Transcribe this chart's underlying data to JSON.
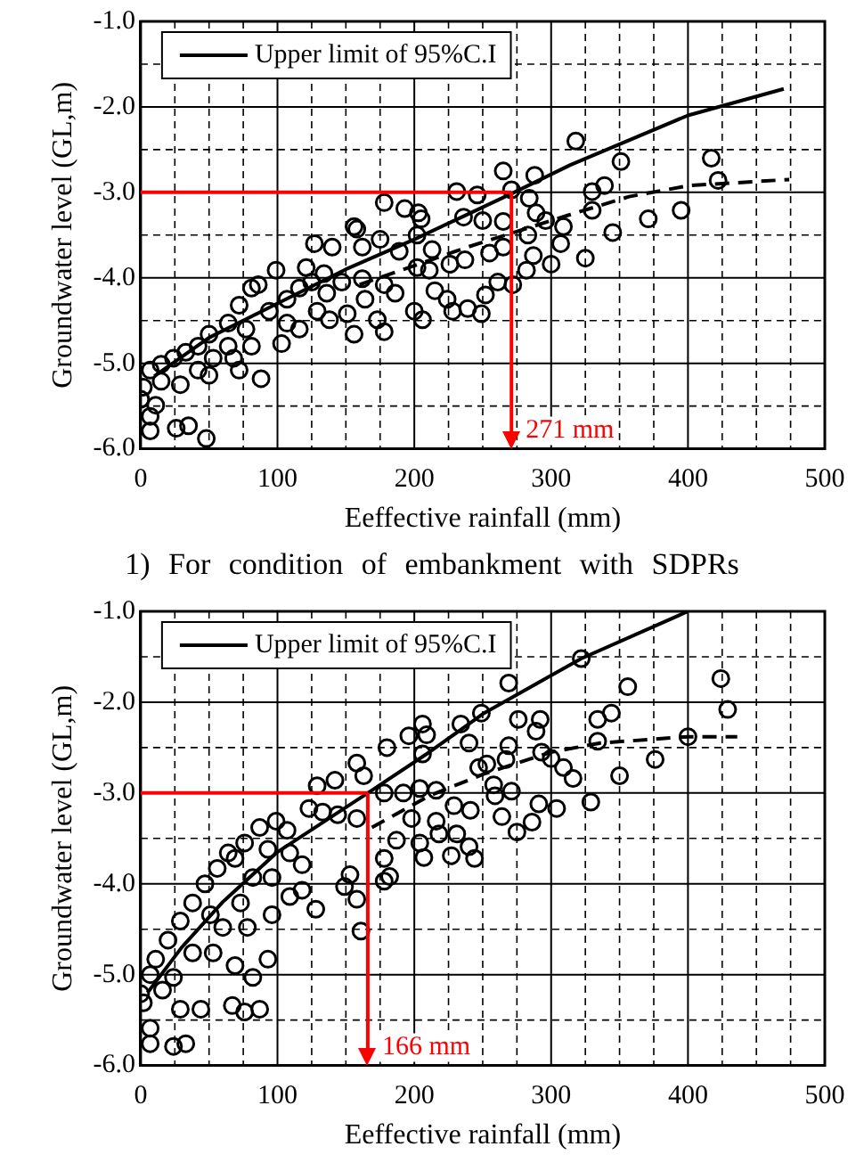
{
  "chart_data": [
    {
      "type": "scatter",
      "xlabel": "Eeffective rainfall (mm)",
      "ylabel": "Groundwater level (GL,m)",
      "annotations": [
        "1) For condition of embankment with SDPRs"
      ],
      "xlim": [
        0,
        500
      ],
      "ylim": [
        -6,
        -1
      ],
      "xticks": [
        0,
        {
          "value": 25,
          "label": null
        },
        {
          "value": 50,
          "label": null
        },
        {
          "value": 75,
          "label": null
        },
        100,
        {
          "value": 125,
          "label": null
        },
        {
          "value": 150,
          "label": null
        },
        {
          "value": 175,
          "label": null
        },
        200,
        {
          "value": 225,
          "label": null
        },
        {
          "value": 250,
          "label": null
        },
        {
          "value": 275,
          "label": null
        },
        300,
        {
          "value": 325,
          "label": null
        },
        {
          "value": 350,
          "label": null
        },
        {
          "value": 375,
          "label": null
        },
        400,
        {
          "value": 425,
          "label": null
        },
        {
          "value": 450,
          "label": null
        },
        {
          "value": 475,
          "label": null
        },
        500
      ],
      "yticks": [
        {
          "value": -6,
          "label": "-6.0"
        },
        {
          "value": -5.5,
          "label": null
        },
        {
          "value": -5,
          "label": "-5.0"
        },
        {
          "value": -4.5,
          "label": null
        },
        {
          "value": -4,
          "label": "-4.0"
        },
        {
          "value": -3.5,
          "label": null
        },
        {
          "value": -3,
          "label": "-3.0"
        },
        {
          "value": -2.5,
          "label": null
        },
        {
          "value": -2,
          "label": "-2.0"
        },
        {
          "value": -1.5,
          "label": null
        },
        {
          "value": -1,
          "label": "-1.0"
        }
      ],
      "grid": true,
      "legend": "top left",
      "ref_lines": [
        {
          "axis": "y",
          "value": -3,
          "color": "#ff0000"
        },
        {
          "axis": "x",
          "value": 271,
          "label": "271 mm",
          "color": "#ff0000"
        }
      ],
      "series": [
        {
          "type": "scatter",
          "color": "#000000",
          "marker": "circle",
          "x": [
            318,
            265,
            288,
            351,
            417,
            422,
            339,
            330,
            231,
            246,
            271,
            284,
            178,
            193,
            203,
            205,
            236,
            250,
            265,
            289,
            296,
            309,
            330,
            371,
            395,
            345,
            156,
            158,
            127,
            140,
            162,
            175,
            189,
            202,
            213,
            226,
            237,
            255,
            265,
            283,
            287,
            300,
            325,
            307,
            99,
            121,
            134,
            147,
            162,
            178,
            186,
            202,
            211,
            215,
            224,
            228,
            239,
            249,
            252,
            261,
            272,
            282,
            200,
            206,
            164,
            173,
            156,
            178,
            151,
            138,
            129,
            116,
            103,
            88,
            81,
            86,
            72,
            64,
            50,
            42,
            33,
            24,
            15,
            7,
            2,
            0,
            7,
            7,
            26,
            35,
            48,
            29,
            50,
            72,
            64,
            77,
            94,
            107,
            116,
            68,
            42,
            15,
            11,
            53,
            81,
            107,
            136,
            125
          ],
          "values": [
            -2.4,
            -2.75,
            -2.8,
            -2.64,
            -2.6,
            -2.86,
            -2.92,
            -2.99,
            -2.99,
            -3.03,
            -2.97,
            -3.07,
            -3.12,
            -3.19,
            -3.24,
            -3.31,
            -3.29,
            -3.33,
            -3.34,
            -3.24,
            -3.33,
            -3.4,
            -3.21,
            -3.31,
            -3.21,
            -3.47,
            -3.4,
            -3.43,
            -3.6,
            -3.64,
            -3.64,
            -3.55,
            -3.69,
            -3.5,
            -3.67,
            -3.84,
            -3.79,
            -3.71,
            -3.64,
            -3.5,
            -3.74,
            -3.84,
            -3.77,
            -3.6,
            -3.91,
            -3.88,
            -3.95,
            -4.05,
            -4.01,
            -4.08,
            -4.18,
            -3.88,
            -3.91,
            -4.15,
            -4.25,
            -4.39,
            -4.36,
            -4.42,
            -4.2,
            -4.05,
            -4.08,
            -3.91,
            -4.39,
            -4.49,
            -4.25,
            -4.49,
            -4.66,
            -4.63,
            -4.42,
            -4.49,
            -4.39,
            -4.6,
            -4.77,
            -5.18,
            -4.12,
            -4.08,
            -4.32,
            -4.53,
            -4.66,
            -4.8,
            -4.87,
            -4.94,
            -5.01,
            -5.08,
            -5.28,
            -5.42,
            -5.62,
            -5.79,
            -5.76,
            -5.73,
            -5.88,
            -5.25,
            -5.14,
            -5.08,
            -4.8,
            -4.6,
            -4.39,
            -4.25,
            -4.12,
            -4.94,
            -5.08,
            -5.21,
            -5.49,
            -4.94,
            -4.8,
            -4.53,
            -4.18,
            -4.05
          ]
        },
        {
          "type": "line",
          "name": "Upper limit of 95%C.I",
          "color": "#000000",
          "line_style": "solid",
          "marker": "none",
          "x": [
            10,
            50,
            100,
            150,
            200,
            273,
            314,
            400,
            470
          ],
          "values": [
            -5.15,
            -4.7,
            -4.3,
            -3.9,
            -3.55,
            -3.0,
            -2.68,
            -2.1,
            -1.79
          ]
        },
        {
          "type": "line",
          "color": "#000000",
          "line_style": "dashed",
          "marker": "none",
          "x": [
            160,
            239,
            314,
            357,
            401,
            474
          ],
          "values": [
            -4.08,
            -3.64,
            -3.26,
            -3.05,
            -2.92,
            -2.85
          ]
        }
      ]
    },
    {
      "type": "scatter",
      "xlabel": "Eeffective rainfall (mm)",
      "ylabel": "Groundwater level (GL,m)",
      "xlim": [
        0,
        500
      ],
      "ylim": [
        -6,
        -1
      ],
      "xticks": [
        0,
        {
          "value": 25,
          "label": null
        },
        {
          "value": 50,
          "label": null
        },
        {
          "value": 75,
          "label": null
        },
        100,
        {
          "value": 125,
          "label": null
        },
        {
          "value": 150,
          "label": null
        },
        {
          "value": 175,
          "label": null
        },
        200,
        {
          "value": 225,
          "label": null
        },
        {
          "value": 250,
          "label": null
        },
        {
          "value": 275,
          "label": null
        },
        300,
        {
          "value": 325,
          "label": null
        },
        {
          "value": 350,
          "label": null
        },
        {
          "value": 375,
          "label": null
        },
        400,
        {
          "value": 425,
          "label": null
        },
        {
          "value": 450,
          "label": null
        },
        {
          "value": 475,
          "label": null
        },
        500
      ],
      "yticks": [
        {
          "value": -6,
          "label": "-6.0"
        },
        {
          "value": -5.5,
          "label": null
        },
        {
          "value": -5,
          "label": "-5.0"
        },
        {
          "value": -4.5,
          "label": null
        },
        {
          "value": -4,
          "label": "-4.0"
        },
        {
          "value": -3.5,
          "label": null
        },
        {
          "value": -3,
          "label": "-3.0"
        },
        {
          "value": -2.5,
          "label": null
        },
        {
          "value": -2,
          "label": "-2.0"
        },
        {
          "value": -1.5,
          "label": null
        },
        {
          "value": -1,
          "label": "-1.0"
        }
      ],
      "grid": true,
      "legend": "top left",
      "ref_lines": [
        {
          "axis": "y",
          "value": -3,
          "color": "#ff0000"
        },
        {
          "axis": "x",
          "value": 166,
          "label": "166 mm",
          "color": "#ff0000"
        }
      ],
      "series": [
        {
          "type": "scatter",
          "color": "#000000",
          "marker": "circle",
          "x": [
            424,
            429,
            322,
            269,
            356,
            344,
            334,
            334,
            400,
            376,
            350,
            329,
            304,
            291,
            276,
            292,
            289,
            249,
            234,
            240,
            269,
            267,
            253,
            247,
            293,
            300,
            309,
            316,
            206,
            196,
            209,
            180,
            206,
            158,
            163,
            142,
            129,
            123,
            133,
            144,
            158,
            178,
            192,
            204,
            216,
            229,
            241,
            258,
            271,
            259,
            264,
            275,
            286,
            231,
            240,
            244,
            227,
            218,
            204,
            207,
            187,
            178,
            182,
            178,
            198,
            216,
            158,
            161,
            153,
            149,
            128,
            118,
            99,
            87,
            107,
            93,
            76,
            69,
            96,
            109,
            96,
            93,
            87,
            76,
            67,
            82,
            69,
            53,
            44,
            29,
            24,
            33,
            7,
            2,
            0,
            7,
            11,
            20,
            29,
            38,
            47,
            56,
            64,
            51,
            38,
            24,
            60,
            73,
            82,
            118,
            109,
            78,
            16,
            7
          ],
          "values": [
            -1.74,
            -2.08,
            -1.52,
            -1.79,
            -1.83,
            -2.12,
            -2.19,
            -2.43,
            -2.38,
            -2.63,
            -2.81,
            -3.1,
            -3.17,
            -3.12,
            -2.19,
            -2.19,
            -2.32,
            -2.12,
            -2.24,
            -2.45,
            -2.48,
            -2.63,
            -2.68,
            -2.72,
            -2.55,
            -2.62,
            -2.72,
            -2.84,
            -2.24,
            -2.37,
            -2.36,
            -2.5,
            -2.57,
            -2.67,
            -2.81,
            -2.86,
            -2.92,
            -3.17,
            -3.21,
            -3.24,
            -3.28,
            -3.0,
            -3.0,
            -2.95,
            -2.97,
            -3.14,
            -3.19,
            -2.91,
            -2.98,
            -3.03,
            -3.26,
            -3.43,
            -3.32,
            -3.45,
            -3.59,
            -3.72,
            -3.69,
            -3.45,
            -3.55,
            -3.71,
            -3.52,
            -3.72,
            -3.92,
            -3.97,
            -3.28,
            -3.31,
            -4.17,
            -4.52,
            -3.9,
            -4.03,
            -4.28,
            -4.07,
            -3.31,
            -3.38,
            -3.41,
            -3.62,
            -3.55,
            -3.72,
            -3.93,
            -4.14,
            -4.34,
            -4.83,
            -5.38,
            -5.41,
            -5.34,
            -5.03,
            -4.9,
            -4.76,
            -5.38,
            -5.38,
            -5.79,
            -5.76,
            -5.76,
            -5.31,
            -5.21,
            -5.0,
            -4.83,
            -4.62,
            -4.41,
            -4.21,
            -4.0,
            -3.83,
            -3.66,
            -4.34,
            -4.76,
            -5.03,
            -4.48,
            -4.21,
            -3.93,
            -3.79,
            -3.66,
            -4.48,
            -5.17,
            -5.59
          ]
        },
        {
          "type": "line",
          "name": "Upper limit of 95%C.I",
          "color": "#000000",
          "line_style": "solid",
          "marker": "none",
          "x": [
            5,
            30,
            60,
            100,
            166,
            211,
            251,
            322,
            400
          ],
          "values": [
            -5.2,
            -4.7,
            -4.2,
            -3.65,
            -3.0,
            -2.55,
            -2.12,
            -1.52,
            -1.0
          ]
        },
        {
          "type": "line",
          "color": "#000000",
          "line_style": "dashed",
          "marker": "none",
          "x": [
            169,
            211,
            251,
            300,
            336,
            400,
            436
          ],
          "values": [
            -3.38,
            -3.03,
            -2.79,
            -2.55,
            -2.45,
            -2.38,
            -2.38
          ]
        }
      ]
    }
  ]
}
